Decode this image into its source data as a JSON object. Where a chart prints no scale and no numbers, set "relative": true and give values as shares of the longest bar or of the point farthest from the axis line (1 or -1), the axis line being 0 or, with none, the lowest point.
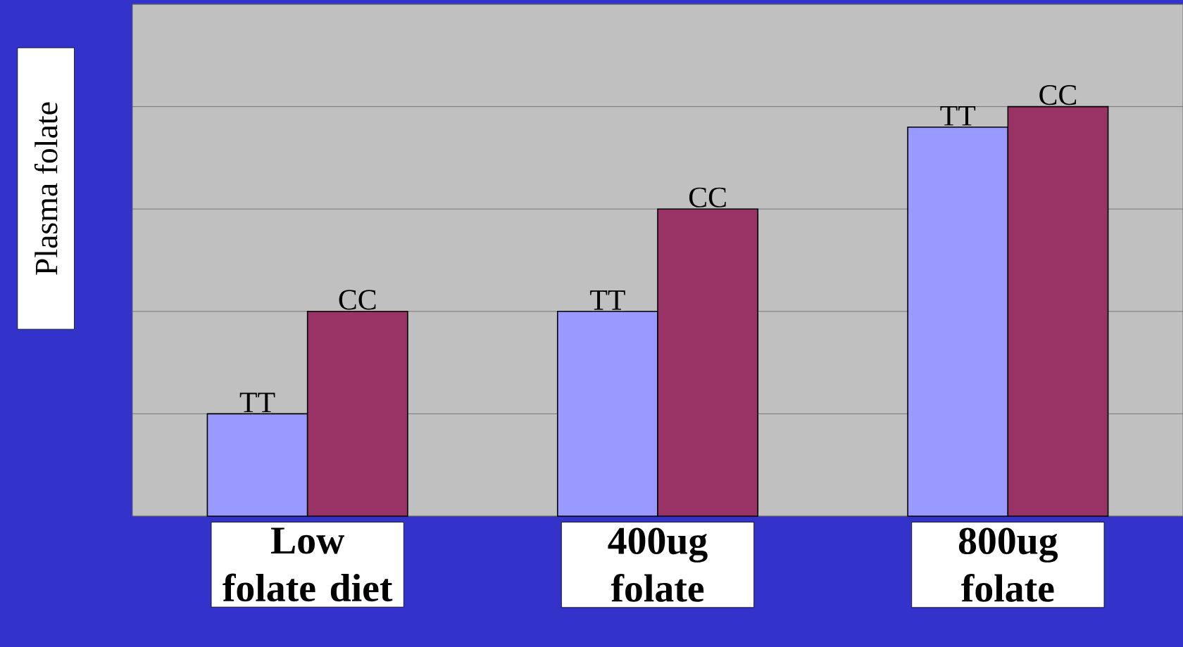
{
  "chart_data": {
    "type": "bar",
    "relative": true,
    "ylabel": "Plasma folate",
    "categories": [
      "Low folate diet",
      "400ug folate",
      "800ug folate"
    ],
    "series": [
      {
        "name": "TT",
        "color": "#9999ff",
        "values": [
          0.25,
          0.5,
          0.95
        ]
      },
      {
        "name": "CC",
        "color": "#993366",
        "values": [
          0.5,
          0.75,
          1
        ]
      }
    ],
    "grid": "y"
  }
}
